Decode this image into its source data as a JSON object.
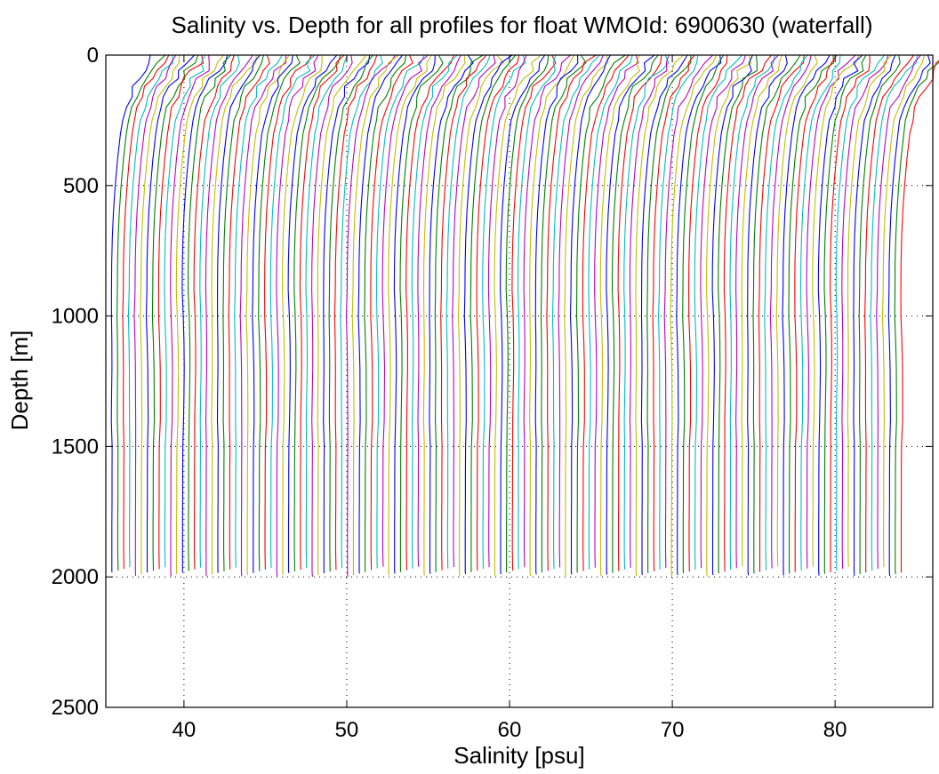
{
  "chart_data": {
    "type": "line",
    "title": "Salinity vs. Depth for all profiles for float WMOId: 6900630 (waterfall)",
    "xlabel": "Salinity [psu]",
    "ylabel": "Depth [m]",
    "xlim": [
      35.2,
      86
    ],
    "ylim": [
      0,
      2500
    ],
    "y_reversed": true,
    "grid": true,
    "legend": "none",
    "xticks": [
      40,
      50,
      60,
      70,
      80
    ],
    "yticks": [
      0,
      500,
      1000,
      1500,
      2000,
      2500
    ],
    "series_colors": [
      "#0000ff",
      "#008000",
      "#ff0000",
      "#00bfbf",
      "#bf00bf",
      "#bfbf00"
    ],
    "profile_count": 135,
    "waterfall_offset_psu": 0.36,
    "base_profile": {
      "depth": [
        0,
        30,
        60,
        90,
        120,
        160,
        200,
        250,
        300,
        400,
        500,
        600,
        700,
        800,
        900,
        1000,
        1100,
        1200,
        1300,
        1400,
        1500,
        1600,
        1700,
        1800,
        1900,
        1980
      ],
      "salinity": [
        38.2,
        38.0,
        37.7,
        37.3,
        37.0,
        36.7,
        36.45,
        36.25,
        36.1,
        35.92,
        35.78,
        35.67,
        35.6,
        35.56,
        35.55,
        35.56,
        35.6,
        35.62,
        35.61,
        35.6,
        35.59,
        35.58,
        35.58,
        35.57,
        35.57,
        35.57
      ]
    }
  }
}
